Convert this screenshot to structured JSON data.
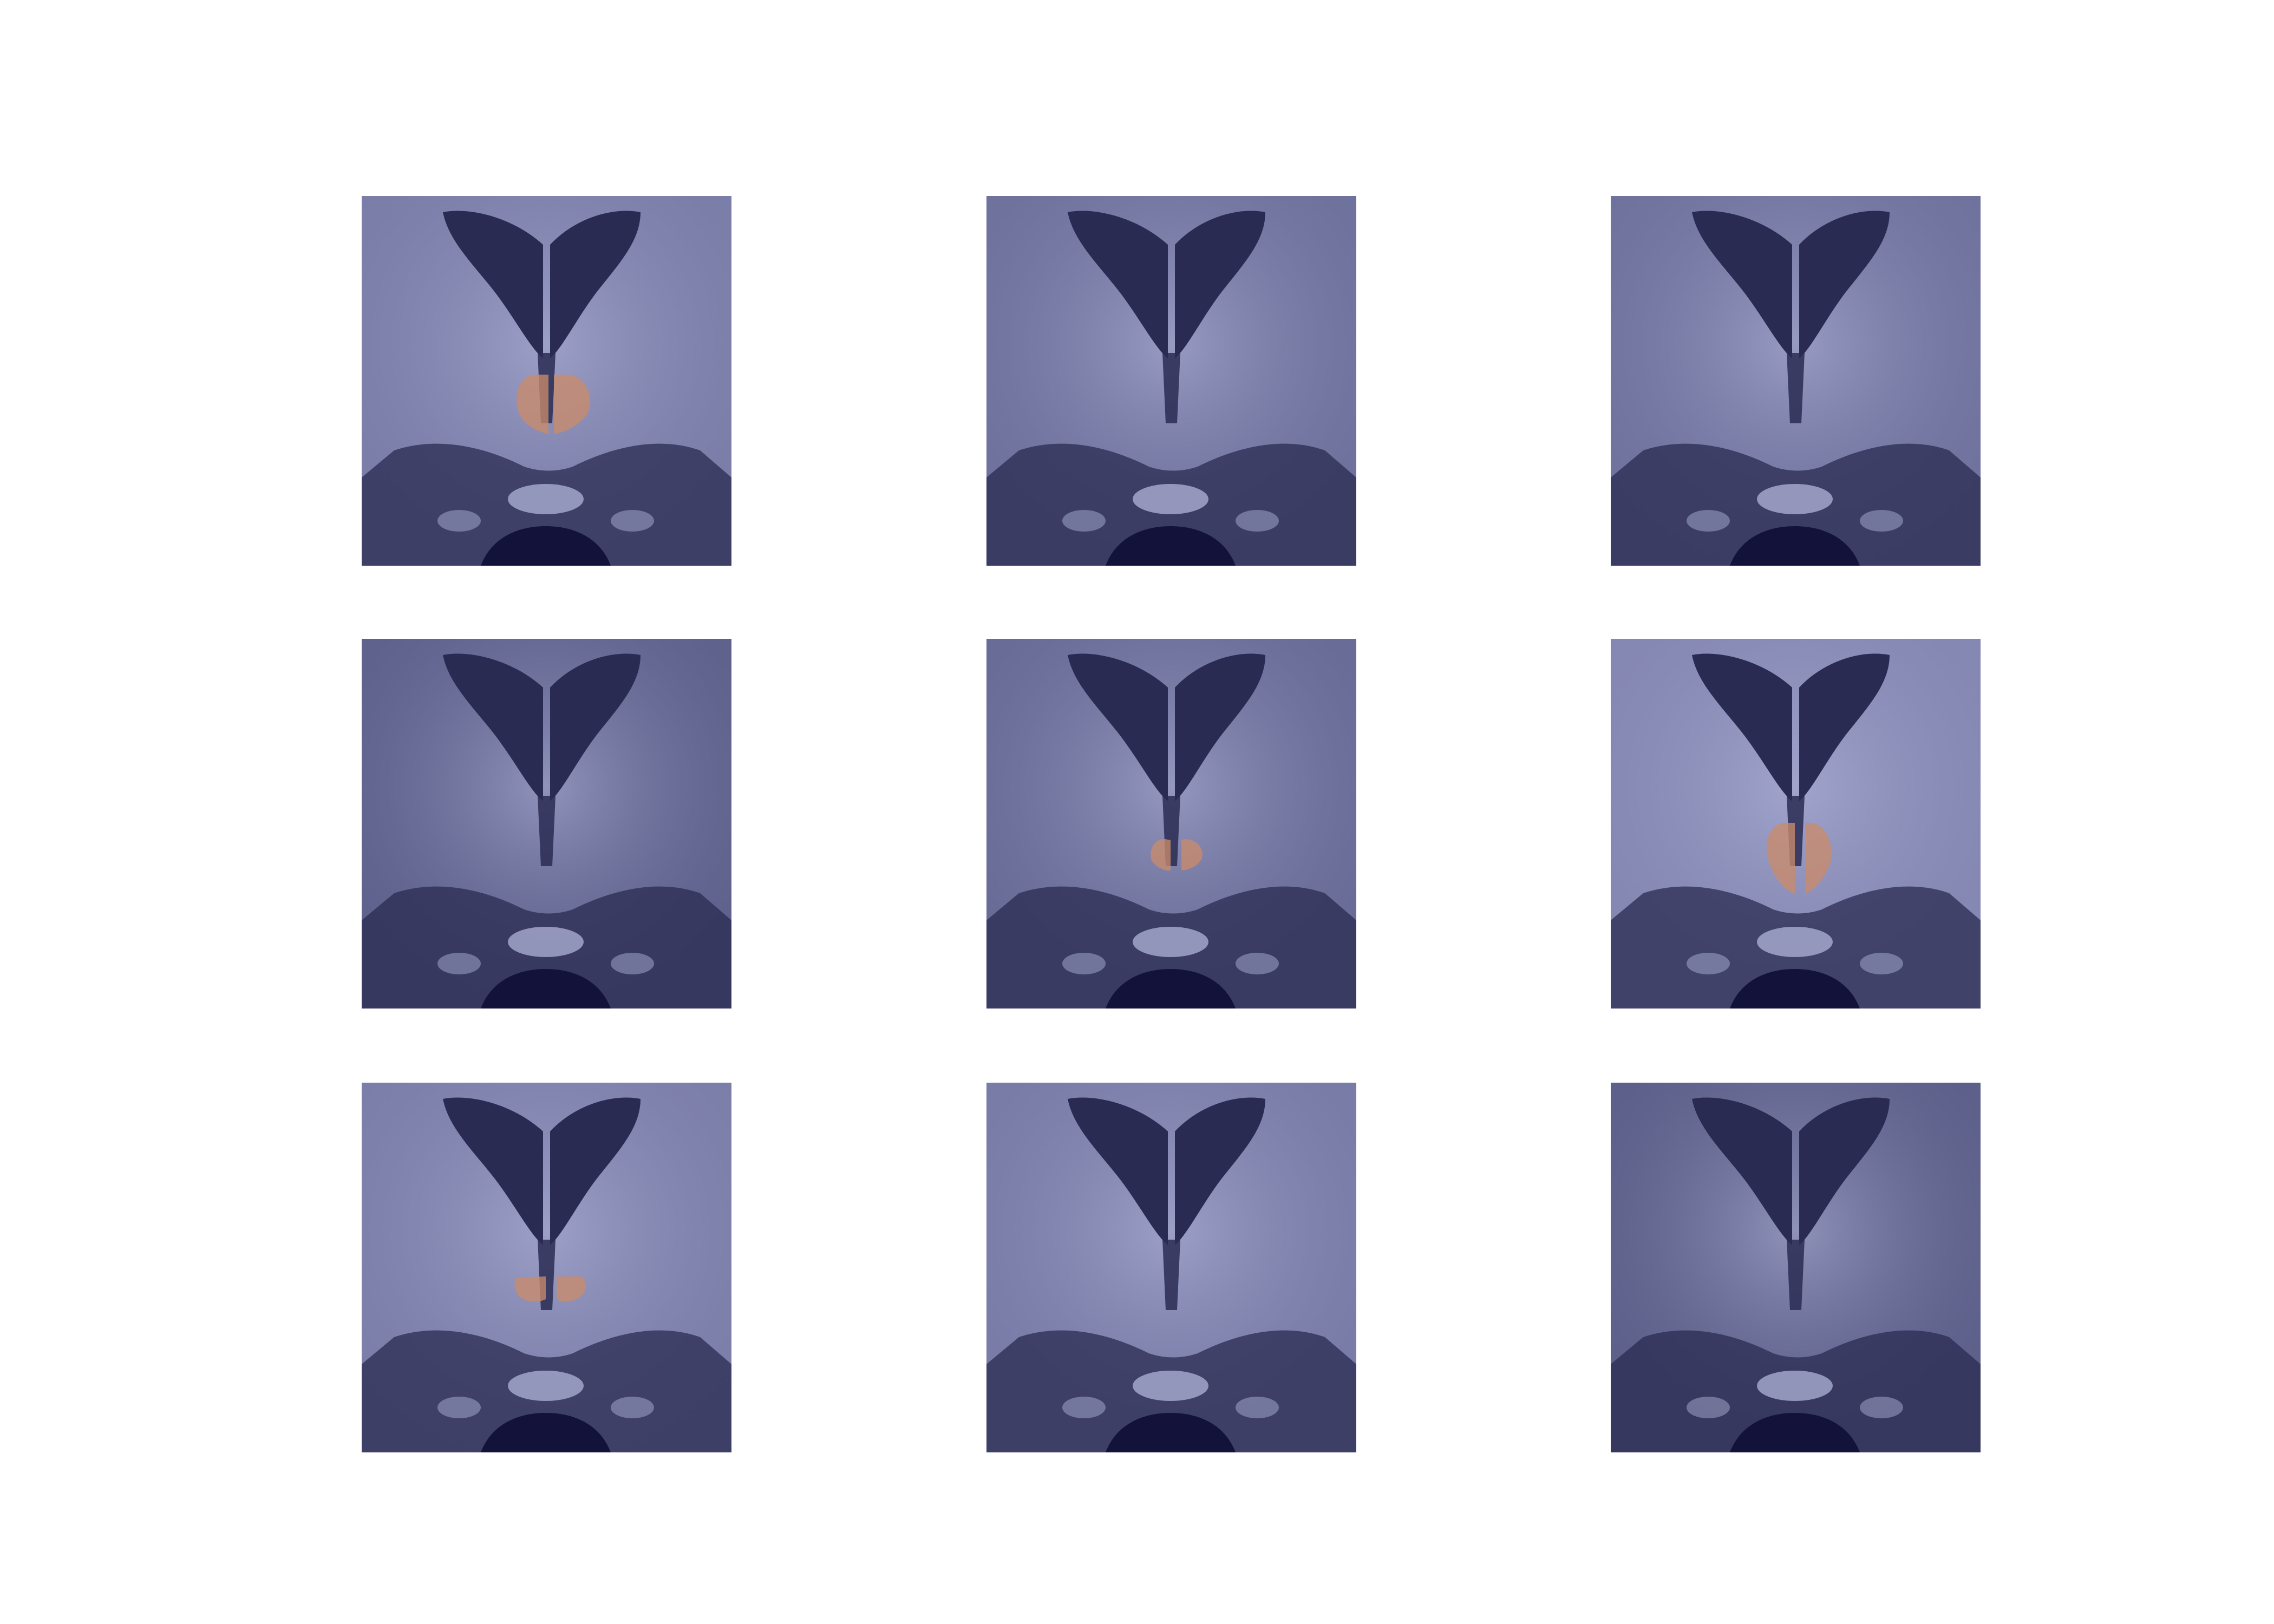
{
  "figure": {
    "background": "#ffffff",
    "rows": 3,
    "cols": 3,
    "panels": [
      {
        "row": 0,
        "col": 0,
        "tone": "#7a7da8",
        "has_overlay": true,
        "overlay_shape": "large-pair"
      },
      {
        "row": 0,
        "col": 1,
        "tone": "#6e719c",
        "has_overlay": false,
        "overlay_shape": "none"
      },
      {
        "row": 0,
        "col": 2,
        "tone": "#6f729d",
        "has_overlay": false,
        "overlay_shape": "none"
      },
      {
        "row": 1,
        "col": 0,
        "tone": "#5e618c",
        "has_overlay": false,
        "overlay_shape": "none"
      },
      {
        "row": 1,
        "col": 1,
        "tone": "#686b96",
        "has_overlay": true,
        "overlay_shape": "small-pair"
      },
      {
        "row": 1,
        "col": 2,
        "tone": "#8487b2",
        "has_overlay": true,
        "overlay_shape": "tall-pair"
      },
      {
        "row": 2,
        "col": 0,
        "tone": "#7b7ea9",
        "has_overlay": true,
        "overlay_shape": "flat-pair"
      },
      {
        "row": 2,
        "col": 1,
        "tone": "#787ba6",
        "has_overlay": false,
        "overlay_shape": "none"
      },
      {
        "row": 2,
        "col": 2,
        "tone": "#5c5f89",
        "has_overlay": false,
        "overlay_shape": "none"
      }
    ],
    "colors": {
      "ventricle": "#2a2b52",
      "dark_base": "#12123a",
      "bright_tissue": "#b9bce0",
      "overlay": "#c98a6a"
    }
  }
}
